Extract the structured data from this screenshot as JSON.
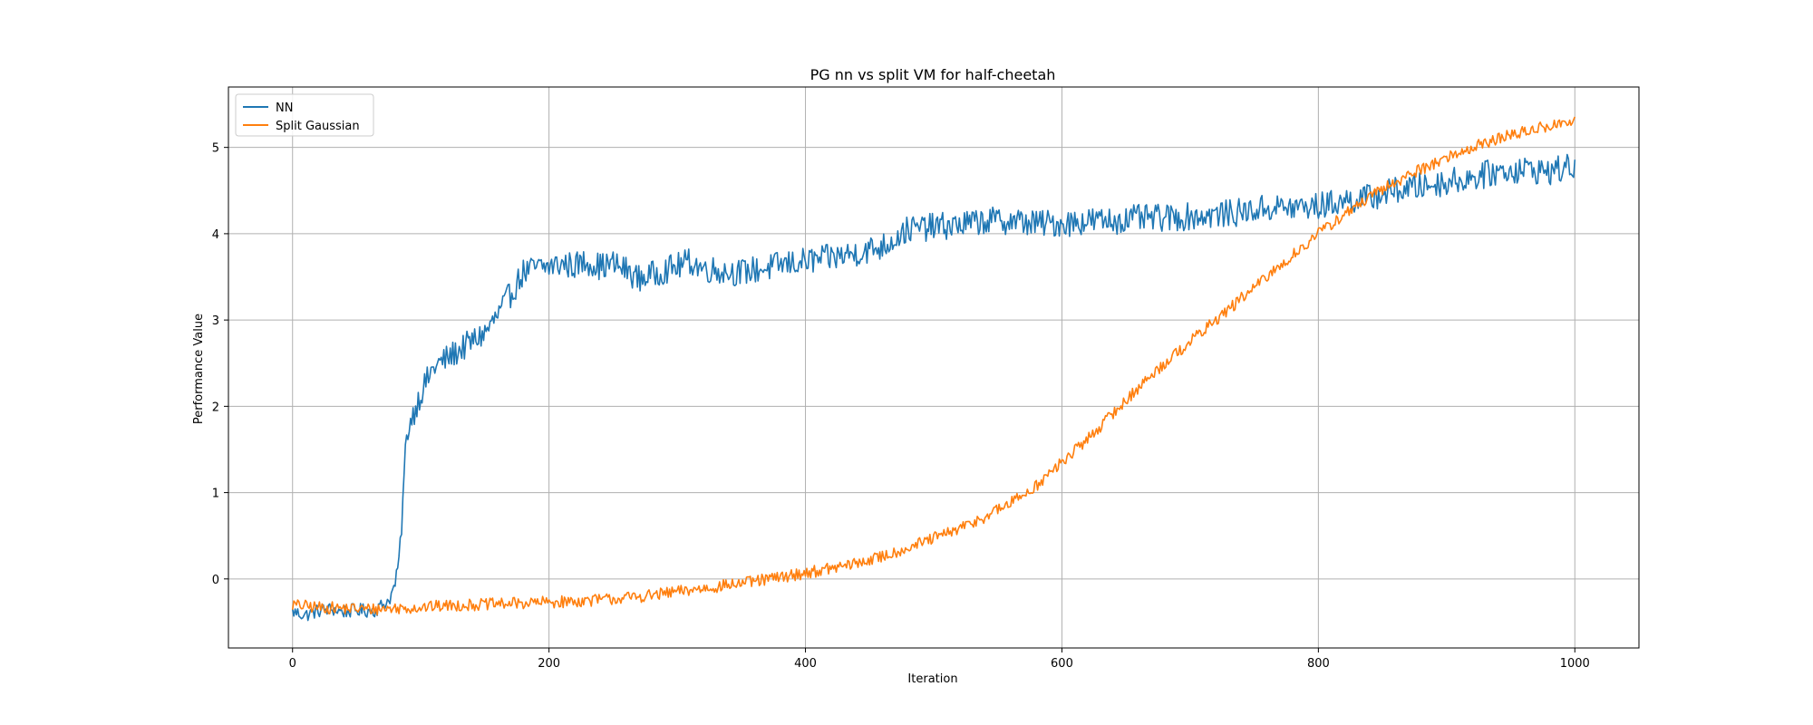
{
  "chart_data": {
    "type": "line",
    "title": "PG nn vs split VM for half-cheetah",
    "xlabel": "Iteration",
    "ylabel": "Performance Value",
    "xlim": [
      -50,
      1050
    ],
    "ylim": [
      -0.8,
      5.7
    ],
    "xticks": [
      0,
      200,
      400,
      600,
      800,
      1000
    ],
    "yticks": [
      0,
      1,
      2,
      3,
      4,
      5
    ],
    "grid": true,
    "legend_position": "top-left",
    "series": [
      {
        "name": "NN",
        "color": "#1f77b4",
        "x": [
          0,
          10,
          20,
          30,
          40,
          50,
          60,
          65,
          70,
          75,
          78,
          80,
          82,
          84,
          86,
          88,
          90,
          95,
          100,
          110,
          120,
          130,
          140,
          150,
          160,
          170,
          180,
          190,
          200,
          210,
          220,
          230,
          240,
          250,
          260,
          270,
          280,
          290,
          300,
          310,
          320,
          330,
          340,
          350,
          360,
          370,
          380,
          390,
          400,
          420,
          440,
          460,
          470,
          480,
          500,
          520,
          540,
          560,
          580,
          600,
          620,
          640,
          660,
          680,
          700,
          720,
          740,
          760,
          780,
          800,
          820,
          840,
          860,
          880,
          900,
          920,
          940,
          960,
          980,
          1000
        ],
        "y": [
          -0.38,
          -0.42,
          -0.37,
          -0.35,
          -0.38,
          -0.36,
          -0.37,
          -0.36,
          -0.3,
          -0.25,
          -0.15,
          -0.05,
          0.1,
          0.4,
          0.9,
          1.45,
          1.75,
          1.95,
          2.15,
          2.45,
          2.55,
          2.65,
          2.75,
          2.85,
          3.05,
          3.3,
          3.55,
          3.6,
          3.62,
          3.65,
          3.63,
          3.68,
          3.62,
          3.65,
          3.58,
          3.48,
          3.52,
          3.58,
          3.62,
          3.68,
          3.6,
          3.58,
          3.56,
          3.55,
          3.58,
          3.6,
          3.64,
          3.66,
          3.68,
          3.72,
          3.78,
          3.85,
          3.95,
          4.05,
          4.08,
          4.1,
          4.15,
          4.15,
          4.12,
          4.12,
          4.15,
          4.15,
          4.18,
          4.18,
          4.2,
          4.22,
          4.25,
          4.3,
          4.3,
          4.32,
          4.38,
          4.42,
          4.5,
          4.55,
          4.6,
          4.65,
          4.72,
          4.75,
          4.72,
          4.78
        ]
      },
      {
        "name": "Split Gaussian",
        "color": "#ff7f0e",
        "x": [
          0,
          20,
          40,
          60,
          80,
          100,
          120,
          140,
          160,
          180,
          200,
          220,
          240,
          260,
          280,
          300,
          320,
          340,
          360,
          380,
          400,
          420,
          440,
          460,
          480,
          500,
          520,
          540,
          560,
          580,
          600,
          620,
          640,
          660,
          680,
          700,
          720,
          740,
          760,
          780,
          800,
          820,
          840,
          860,
          880,
          900,
          920,
          940,
          960,
          980,
          1000
        ],
        "y": [
          -0.3,
          -0.33,
          -0.34,
          -0.35,
          -0.34,
          -0.33,
          -0.31,
          -0.3,
          -0.29,
          -0.28,
          -0.27,
          -0.26,
          -0.24,
          -0.22,
          -0.19,
          -0.15,
          -0.11,
          -0.07,
          -0.03,
          0.02,
          0.07,
          0.12,
          0.18,
          0.26,
          0.36,
          0.47,
          0.58,
          0.72,
          0.88,
          1.08,
          1.35,
          1.62,
          1.92,
          2.22,
          2.5,
          2.75,
          3.0,
          3.25,
          3.5,
          3.75,
          4.0,
          4.22,
          4.42,
          4.6,
          4.75,
          4.88,
          5.0,
          5.1,
          5.18,
          5.25,
          5.3
        ]
      }
    ]
  }
}
